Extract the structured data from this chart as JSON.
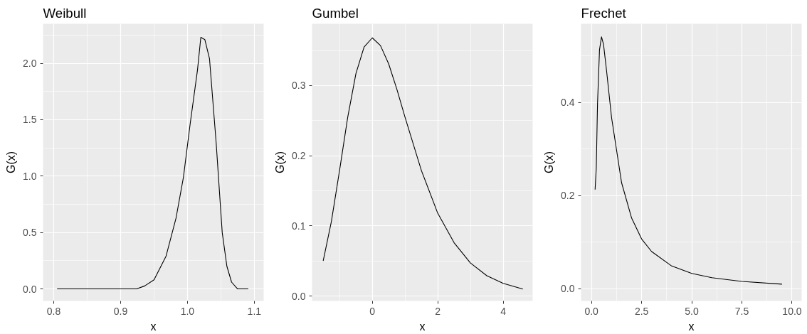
{
  "chart_data": [
    {
      "type": "line",
      "title": "Weibull",
      "xlabel": "x",
      "ylabel": "G(x)",
      "grid": true,
      "xlim": [
        0.784,
        1.114
      ],
      "ylim": [
        -0.107,
        2.35
      ],
      "xticks": [
        0.8,
        0.9,
        {
          "value": 1.0,
          "label": "1.0"
        },
        1.1
      ],
      "yticks": [
        {
          "value": 0,
          "label": "0.0"
        },
        0.5,
        {
          "value": 1,
          "label": "1.0"
        },
        1.5,
        {
          "value": 2,
          "label": "2.0"
        }
      ],
      "series": [
        {
          "color": "#000000",
          "x": [
            0.805,
            0.85,
            0.9,
            0.924,
            0.936,
            0.95,
            0.968,
            0.983,
            0.994,
            1.004,
            1.015,
            1.02,
            1.026,
            1.033,
            1.043,
            1.052,
            1.059,
            1.066,
            1.075,
            1.091
          ],
          "values": [
            0,
            0,
            0,
            0,
            0.026,
            0.08,
            0.29,
            0.63,
            0.99,
            1.46,
            1.94,
            2.23,
            2.21,
            2.04,
            1.29,
            0.5,
            0.2,
            0.06,
            0,
            0
          ]
        }
      ]
    },
    {
      "type": "line",
      "title": "Gumbel",
      "xlabel": "x",
      "ylabel": "G(x)",
      "grid": true,
      "xlim": [
        -1.84,
        4.9
      ],
      "ylim": [
        -0.007,
        0.388
      ],
      "xticks": [
        0,
        2,
        4
      ],
      "yticks": [
        {
          "value": 0,
          "label": "0.0"
        },
        0.1,
        0.2,
        0.3
      ],
      "series": [
        {
          "color": "#000000",
          "x": [
            -1.5,
            -1.25,
            -1.0,
            -0.75,
            -0.5,
            -0.25,
            0,
            0.25,
            0.5,
            0.75,
            1.0,
            1.5,
            2.0,
            2.5,
            3.0,
            3.5,
            4.0,
            4.6
          ],
          "values": [
            0.05,
            0.106,
            0.179,
            0.255,
            0.317,
            0.355,
            0.368,
            0.357,
            0.331,
            0.295,
            0.255,
            0.179,
            0.118,
            0.076,
            0.047,
            0.029,
            0.018,
            0.01
          ]
        }
      ]
    },
    {
      "type": "line",
      "title": "Frechet",
      "xlabel": "x",
      "ylabel": "G(x)",
      "grid": true,
      "xlim": [
        -0.52,
        10.48
      ],
      "ylim": [
        -0.026,
        0.569
      ],
      "xticks": [
        {
          "value": 0,
          "label": "0.0"
        },
        2.5,
        {
          "value": 5,
          "label": "5.0"
        },
        7.5,
        {
          "value": 10,
          "label": "10.0"
        }
      ],
      "yticks": [
        {
          "value": 0,
          "label": "0.0"
        },
        0.2,
        0.4
      ],
      "series": [
        {
          "color": "#000000",
          "x": [
            0.18,
            0.24,
            0.3,
            0.4,
            0.5,
            0.6,
            0.75,
            1.0,
            1.5,
            2.0,
            2.5,
            3.0,
            4.0,
            5.0,
            6.0,
            7.5,
            9.5
          ],
          "values": [
            0.213,
            0.26,
            0.396,
            0.513,
            0.541,
            0.525,
            0.469,
            0.368,
            0.228,
            0.152,
            0.107,
            0.08,
            0.049,
            0.033,
            0.024,
            0.016,
            0.01
          ]
        }
      ]
    }
  ]
}
